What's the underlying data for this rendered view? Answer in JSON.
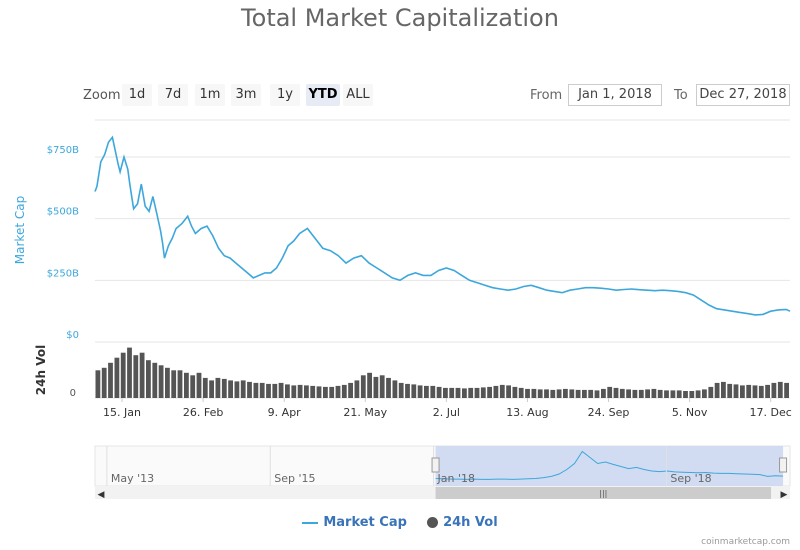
{
  "chart_data": {
    "type": "line",
    "title": "Total Market Capitalization",
    "ylabel": "Market Cap",
    "volume_label": "24h Vol",
    "y_ticks": [
      "$750B",
      "$500B",
      "$250B",
      "$0"
    ],
    "y_tick_values": [
      750,
      500,
      250,
      0
    ],
    "volume_ticks": [
      "0"
    ],
    "x_ticks": [
      "15. Jan",
      "26. Feb",
      "9. Apr",
      "21. May",
      "2. Jul",
      "13. Aug",
      "24. Sep",
      "5. Nov",
      "17. Dec"
    ],
    "x_tick_days": [
      14,
      56,
      98,
      140,
      182,
      224,
      266,
      308,
      350
    ],
    "ylim": [
      0,
      900
    ],
    "x_range_days": [
      0,
      360
    ],
    "series": [
      {
        "name": "Market Cap",
        "unit": "billion USD",
        "days": [
          0,
          1,
          3,
          5,
          7,
          9,
          12,
          13,
          15,
          17,
          18,
          20,
          22,
          24,
          26,
          28,
          30,
          32,
          34,
          35,
          36,
          38,
          40,
          42,
          45,
          48,
          50,
          52,
          55,
          58,
          61,
          64,
          67,
          70,
          73,
          76,
          79,
          82,
          85,
          88,
          91,
          94,
          97,
          100,
          103,
          106,
          110,
          114,
          118,
          122,
          126,
          130,
          134,
          138,
          142,
          146,
          150,
          154,
          158,
          162,
          166,
          170,
          174,
          178,
          182,
          186,
          190,
          194,
          198,
          202,
          206,
          210,
          214,
          218,
          222,
          226,
          230,
          234,
          238,
          242,
          246,
          250,
          254,
          258,
          262,
          266,
          270,
          274,
          278,
          282,
          286,
          290,
          294,
          298,
          302,
          306,
          310,
          314,
          318,
          322,
          326,
          330,
          334,
          338,
          342,
          346,
          350,
          354,
          358,
          360
        ],
        "values": [
          610,
          630,
          730,
          760,
          810,
          830,
          720,
          690,
          750,
          700,
          640,
          540,
          560,
          640,
          550,
          530,
          590,
          520,
          450,
          400,
          340,
          390,
          420,
          460,
          480,
          510,
          470,
          440,
          460,
          470,
          430,
          380,
          350,
          340,
          320,
          300,
          280,
          260,
          270,
          280,
          280,
          300,
          340,
          390,
          410,
          440,
          460,
          420,
          380,
          370,
          350,
          320,
          340,
          350,
          320,
          300,
          280,
          260,
          250,
          270,
          280,
          270,
          270,
          290,
          300,
          290,
          270,
          250,
          240,
          230,
          220,
          215,
          210,
          215,
          225,
          230,
          220,
          210,
          205,
          200,
          210,
          215,
          220,
          220,
          218,
          215,
          210,
          213,
          215,
          212,
          210,
          208,
          210,
          208,
          205,
          200,
          190,
          170,
          150,
          135,
          130,
          125,
          120,
          115,
          110,
          112,
          125,
          130,
          132,
          125
        ]
      },
      {
        "name": "24h Vol",
        "type": "column",
        "relative_values": [
          0.55,
          0.6,
          0.7,
          0.8,
          0.9,
          1.0,
          0.85,
          0.9,
          0.75,
          0.7,
          0.65,
          0.6,
          0.55,
          0.55,
          0.5,
          0.45,
          0.5,
          0.4,
          0.35,
          0.4,
          0.38,
          0.35,
          0.33,
          0.35,
          0.32,
          0.3,
          0.3,
          0.28,
          0.28,
          0.3,
          0.27,
          0.25,
          0.26,
          0.25,
          0.24,
          0.23,
          0.22,
          0.22,
          0.24,
          0.26,
          0.3,
          0.35,
          0.45,
          0.5,
          0.42,
          0.45,
          0.4,
          0.35,
          0.3,
          0.28,
          0.27,
          0.25,
          0.24,
          0.24,
          0.22,
          0.2,
          0.2,
          0.2,
          0.19,
          0.2,
          0.2,
          0.21,
          0.22,
          0.24,
          0.26,
          0.25,
          0.22,
          0.2,
          0.18,
          0.18,
          0.17,
          0.17,
          0.16,
          0.17,
          0.18,
          0.17,
          0.16,
          0.16,
          0.16,
          0.15,
          0.18,
          0.22,
          0.2,
          0.18,
          0.17,
          0.16,
          0.16,
          0.17,
          0.18,
          0.16,
          0.15,
          0.15,
          0.15,
          0.14,
          0.14,
          0.15,
          0.17,
          0.22,
          0.3,
          0.32,
          0.28,
          0.27,
          0.25,
          0.26,
          0.25,
          0.24,
          0.26,
          0.3,
          0.32,
          0.3
        ]
      }
    ],
    "navigator": {
      "labels": [
        "May '13",
        "Sep '15",
        "Jan '18",
        "Sep '18"
      ],
      "label_fracs": [
        0.02,
        0.255,
        0.49,
        0.825
      ],
      "selection_fracs": [
        0.49,
        0.99
      ],
      "sparkline": [
        0.05,
        0.04,
        0.03,
        0.03,
        0.02,
        0.03,
        0.02,
        0.02,
        0.03,
        0.03,
        0.02,
        0.03,
        0.04,
        0.05,
        0.08,
        0.12,
        0.2,
        0.35,
        0.55,
        0.95,
        0.75,
        0.55,
        0.6,
        0.52,
        0.45,
        0.38,
        0.42,
        0.35,
        0.3,
        0.28,
        0.3,
        0.27,
        0.26,
        0.25,
        0.24,
        0.25,
        0.23,
        0.22,
        0.22,
        0.21,
        0.2,
        0.19,
        0.18,
        0.12,
        0.14,
        0.13
      ]
    },
    "legend_placement": "bottom-center",
    "colors": {
      "market_cap": "#3da7dc",
      "volume": "#555555",
      "grid": "#e6e6e6",
      "navigator_selection": "#c9d5ee",
      "axis_label": "#3da7dc"
    }
  },
  "toolbar": {
    "zoom_label": "Zoom",
    "zoom_buttons": [
      "1d",
      "7d",
      "1m",
      "3m",
      "1y",
      "YTD",
      "ALL"
    ],
    "active_zoom": "YTD",
    "from_label": "From",
    "from_value": "Jan 1, 2018",
    "to_label": "To",
    "to_value": "Dec 27, 2018"
  },
  "legend": {
    "market_cap": "Market Cap",
    "volume": "24h Vol"
  },
  "credit": "coinmarketcap.com"
}
